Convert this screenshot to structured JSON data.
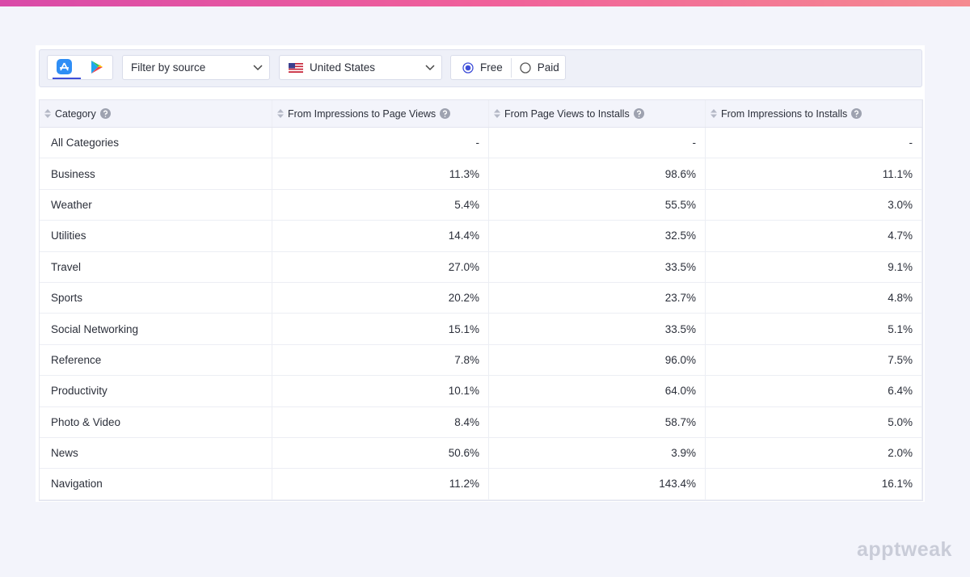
{
  "toolbar": {
    "source_filter": "Filter by source",
    "country": "United States",
    "options": [
      "Free",
      "Paid"
    ]
  },
  "table": {
    "headers": [
      "Category",
      "From Impressions to Page Views",
      "From Page Views to Installs",
      "From Impressions to Installs"
    ],
    "rows": [
      [
        "All Categories",
        "-",
        "-",
        "-"
      ],
      [
        "Business",
        "11.3%",
        "98.6%",
        "11.1%"
      ],
      [
        "Weather",
        "5.4%",
        "55.5%",
        "3.0%"
      ],
      [
        "Utilities",
        "14.4%",
        "32.5%",
        "4.7%"
      ],
      [
        "Travel",
        "27.0%",
        "33.5%",
        "9.1%"
      ],
      [
        "Sports",
        "20.2%",
        "23.7%",
        "4.8%"
      ],
      [
        "Social Networking",
        "15.1%",
        "33.5%",
        "5.1%"
      ],
      [
        "Reference",
        "7.8%",
        "96.0%",
        "7.5%"
      ],
      [
        "Productivity",
        "10.1%",
        "64.0%",
        "6.4%"
      ],
      [
        "Photo & Video",
        "8.4%",
        "58.7%",
        "5.0%"
      ],
      [
        "News",
        "50.6%",
        "3.9%",
        "2.0%"
      ],
      [
        "Navigation",
        "11.2%",
        "143.4%",
        "16.1%"
      ]
    ]
  },
  "watermark": "apptweak"
}
